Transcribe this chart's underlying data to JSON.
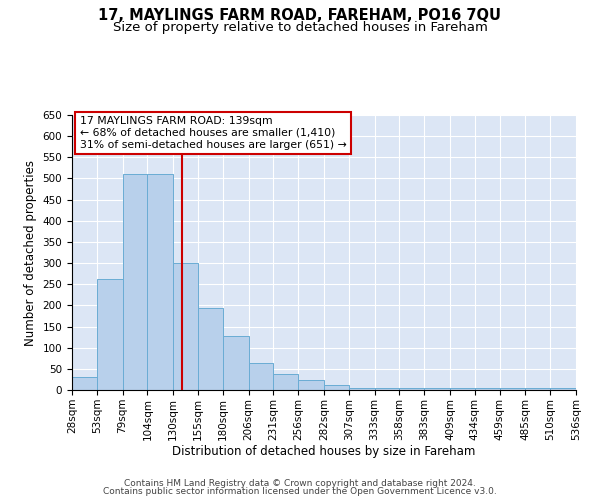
{
  "title": "17, MAYLINGS FARM ROAD, FAREHAM, PO16 7QU",
  "subtitle": "Size of property relative to detached houses in Fareham",
  "xlabel": "Distribution of detached houses by size in Fareham",
  "ylabel": "Number of detached properties",
  "heights": [
    30,
    263,
    510,
    510,
    300,
    193,
    128,
    63,
    38,
    23,
    13,
    5,
    5,
    5,
    5,
    5,
    5,
    5,
    5,
    5
  ],
  "bin_edges": [
    28,
    53,
    79,
    104,
    130,
    155,
    180,
    206,
    231,
    256,
    282,
    307,
    333,
    358,
    383,
    409,
    434,
    459,
    485,
    510,
    536
  ],
  "tick_labels": [
    "28sqm",
    "53sqm",
    "79sqm",
    "104sqm",
    "130sqm",
    "155sqm",
    "180sqm",
    "206sqm",
    "231sqm",
    "256sqm",
    "282sqm",
    "307sqm",
    "333sqm",
    "358sqm",
    "383sqm",
    "409sqm",
    "434sqm",
    "459sqm",
    "485sqm",
    "510sqm",
    "536sqm"
  ],
  "bar_color": "#b8d0eb",
  "bar_edge_color": "#6aacd4",
  "property_line_x": 139,
  "property_line_color": "#cc0000",
  "annotation_text": "17 MAYLINGS FARM ROAD: 139sqm\n← 68% of detached houses are smaller (1,410)\n31% of semi-detached houses are larger (651) →",
  "annotation_box_facecolor": "#ffffff",
  "annotation_box_edgecolor": "#cc0000",
  "background_color": "#dce6f5",
  "ylim": [
    0,
    650
  ],
  "yticks": [
    0,
    50,
    100,
    150,
    200,
    250,
    300,
    350,
    400,
    450,
    500,
    550,
    600,
    650
  ],
  "footnote1": "Contains HM Land Registry data © Crown copyright and database right 2024.",
  "footnote2": "Contains public sector information licensed under the Open Government Licence v3.0.",
  "title_fontsize": 10.5,
  "subtitle_fontsize": 9.5,
  "axis_label_fontsize": 8.5,
  "tick_fontsize": 7.5,
  "annotation_fontsize": 7.8,
  "footnote_fontsize": 6.5
}
